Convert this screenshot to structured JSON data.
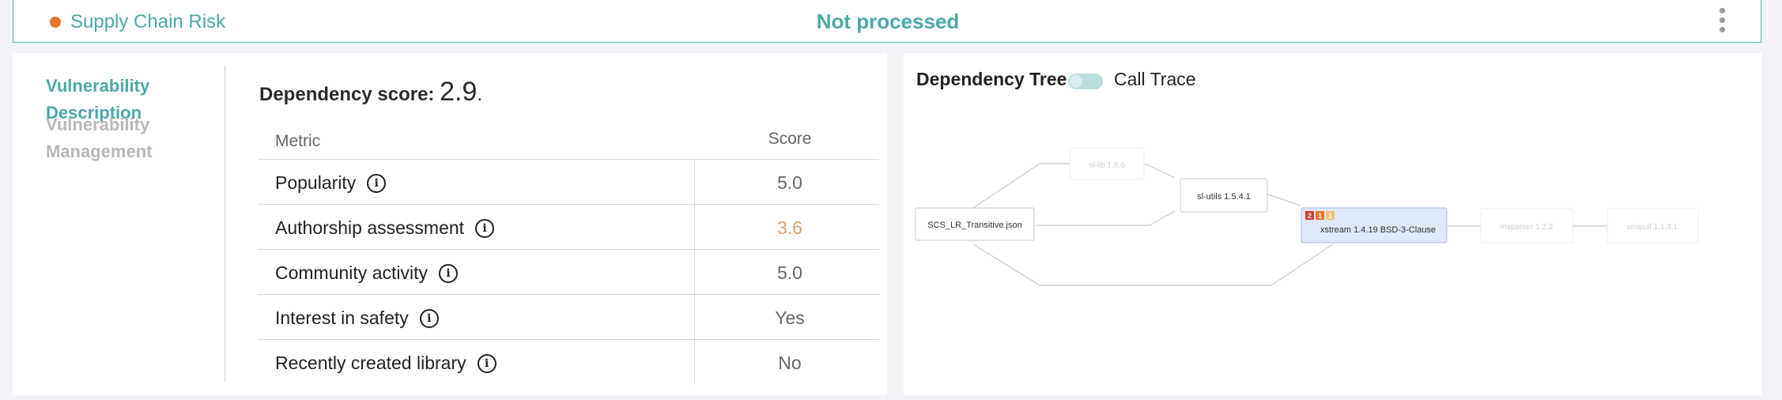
{
  "header": {
    "title": "Supply Chain Risk",
    "status": "Not processed",
    "status_dot_color": "#e8752f",
    "accent_color": "#4aa9a7"
  },
  "nav": {
    "items": [
      {
        "label": "Vulnerability Description",
        "active": true
      },
      {
        "label": "Vulnerability Management",
        "active": false
      }
    ]
  },
  "score": {
    "label": "Dependency score:",
    "value": "2.9",
    "suffix": "."
  },
  "metrics": {
    "header_metric": "Metric",
    "header_score": "Score",
    "rows": [
      {
        "name": "Popularity",
        "score": "5.0"
      },
      {
        "name": "Authorship assessment",
        "score": "3.6"
      },
      {
        "name": "Community activity",
        "score": "5.0"
      },
      {
        "name": "Interest in safety",
        "score": "Yes"
      },
      {
        "name": "Recently created library",
        "score": "No"
      }
    ],
    "info_glyph": "i"
  },
  "tree": {
    "tab_dependency": "Dependency Tree",
    "tab_call_trace": "Call Trace",
    "nodes": {
      "root": "SCS_LR_Transitive.json",
      "sl_lib": "sl-lib 1.6.0",
      "sl_utils": "sl-utils 1.5.4.1",
      "xstream": "xstream 1.4.19 BSD-3-Clause",
      "mxparser": "mxparser 1.2.2",
      "xmlpull": "xmlpull 1.1.3.1"
    },
    "badges": [
      {
        "count": "2",
        "color": "#d13f2f"
      },
      {
        "count": "1",
        "color": "#e8752f"
      },
      {
        "count": "1",
        "color": "#f0c27a"
      }
    ]
  }
}
